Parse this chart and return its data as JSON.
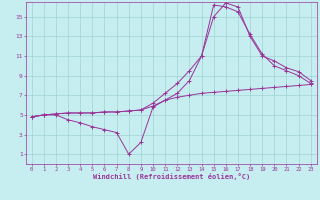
{
  "xlabel": "Windchill (Refroidissement éolien,°C)",
  "bg_color": "#c6eef0",
  "line_color": "#993399",
  "xlim": [
    -0.5,
    23.5
  ],
  "ylim": [
    0,
    16.5
  ],
  "xticks": [
    0,
    1,
    2,
    3,
    4,
    5,
    6,
    7,
    8,
    9,
    10,
    11,
    12,
    13,
    14,
    15,
    16,
    17,
    18,
    19,
    20,
    21,
    22,
    23
  ],
  "yticks": [
    1,
    3,
    5,
    7,
    9,
    11,
    13,
    15
  ],
  "grid_color": "#99cccc",
  "line1_x": [
    0,
    1,
    2,
    3,
    4,
    5,
    6,
    7,
    8,
    9,
    10,
    11,
    12,
    13,
    14,
    15,
    16,
    17,
    18,
    19,
    20,
    21,
    22,
    23
  ],
  "line1_y": [
    4.8,
    5.0,
    5.0,
    4.5,
    4.2,
    3.8,
    3.5,
    3.2,
    1.0,
    2.2,
    5.8,
    6.5,
    6.8,
    7.0,
    7.2,
    7.3,
    7.4,
    7.5,
    7.6,
    7.7,
    7.8,
    7.9,
    8.0,
    8.1
  ],
  "line2_x": [
    0,
    1,
    2,
    3,
    4,
    5,
    6,
    7,
    8,
    9,
    10,
    11,
    12,
    13,
    14,
    15,
    16,
    17,
    18,
    19,
    20,
    21,
    22,
    23
  ],
  "line2_y": [
    4.8,
    5.0,
    5.1,
    5.2,
    5.2,
    5.2,
    5.3,
    5.3,
    5.4,
    5.5,
    6.2,
    7.2,
    8.2,
    9.5,
    11.0,
    15.0,
    16.4,
    16.0,
    13.0,
    11.0,
    10.5,
    9.8,
    9.4,
    8.5
  ],
  "line3_x": [
    0,
    1,
    2,
    3,
    4,
    5,
    6,
    7,
    8,
    9,
    10,
    11,
    12,
    13,
    14,
    15,
    16,
    17,
    18,
    19,
    20,
    21,
    22,
    23
  ],
  "line3_y": [
    4.8,
    5.0,
    5.1,
    5.2,
    5.2,
    5.2,
    5.3,
    5.3,
    5.4,
    5.5,
    5.9,
    6.5,
    7.2,
    8.5,
    11.0,
    16.2,
    16.0,
    15.5,
    13.2,
    11.2,
    10.0,
    9.5,
    9.0,
    8.2
  ]
}
